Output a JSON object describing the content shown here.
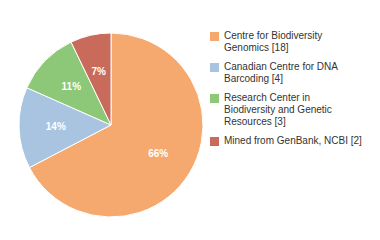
{
  "chart_data": {
    "type": "pie",
    "categories": [
      "Centre for Biodiversity\nGenomics [18]",
      "Canadian Centre for DNA\nBarcoding [4]",
      "Research Center in\nBiodiversity and Genetic\nResources [3]",
      "Mined from GenBank, NCBI [2]"
    ],
    "values": [
      66,
      14,
      11,
      7
    ],
    "value_labels": [
      "66%",
      "14%",
      "11%",
      "7%"
    ],
    "colors": [
      "#F5A96E",
      "#A8C4E0",
      "#8DC878",
      "#C96B5A"
    ],
    "data_labels": true,
    "legend": "right"
  }
}
